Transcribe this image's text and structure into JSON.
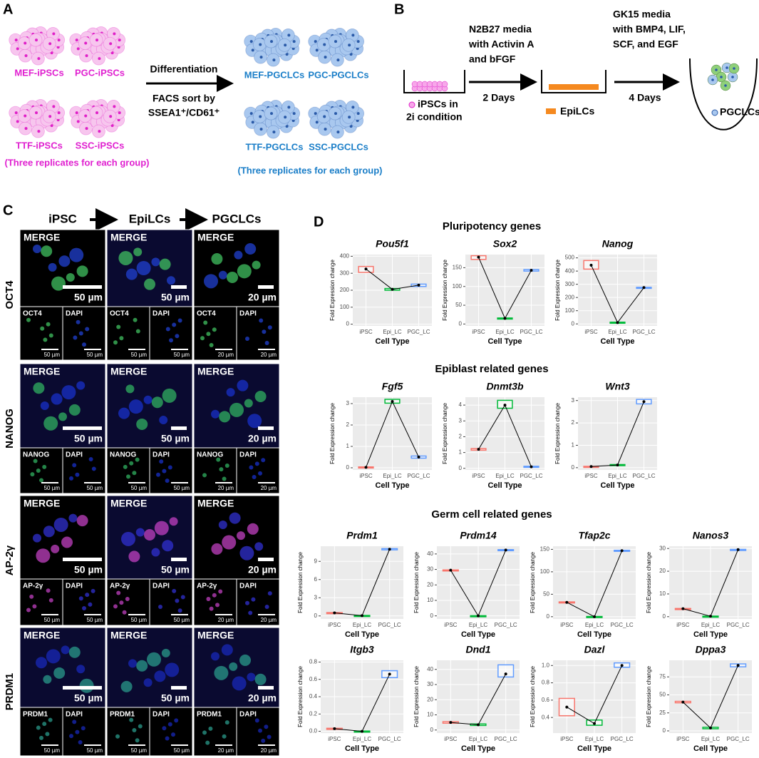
{
  "panel_a": {
    "letter": "A",
    "ipscs": [
      "MEF-iPSCs",
      "PGC-iPSCs",
      "TTF-iPSCs",
      "SSC-iPSCs"
    ],
    "ipsc_note": "(Three replicates for each group)",
    "arrow_top": "Differentiation",
    "arrow_bottom": [
      "FACS sort by",
      "SSEA1⁺/CD61⁺"
    ],
    "pgclcs": [
      "MEF-PGCLCs",
      "PGC-PGCLCs",
      "TTF-PGCLCs",
      "SSC-PGCLCs"
    ],
    "pgclc_note": "(Three replicates for each group)"
  },
  "panel_b": {
    "letter": "B",
    "step1": [
      "N2B27 media",
      "with Activin A",
      "and bFGF"
    ],
    "step2": [
      "GK15 media",
      "with BMP4, LIF,",
      "SCF, and EGF"
    ],
    "days1": "2 Days",
    "days2": "4 Days",
    "ipsc_legend": [
      "iPSCs in",
      "2i condition"
    ],
    "epilc_legend": "EpiLCs",
    "pgclc_legend": "PGCLCs"
  },
  "panel_c": {
    "letter": "C",
    "columns": [
      "iPSC",
      "EpiLCs",
      "PGCLCs"
    ],
    "rows": [
      {
        "marker": "OCT4",
        "merge": [
          {
            "label": "MERGE",
            "scale": "50 µm"
          },
          {
            "label": "MERGE",
            "scale": "50 µm"
          },
          {
            "label": "MERGE",
            "scale": "20 µm"
          }
        ],
        "channels": [
          {
            "label": "OCT4",
            "scale": "50 µm"
          },
          {
            "label": "DAPI",
            "scale": "50 µm"
          },
          {
            "label": "OCT4",
            "scale": "50 µm"
          },
          {
            "label": "DAPI",
            "scale": "50 µm"
          },
          {
            "label": "OCT4",
            "scale": "20 µm"
          },
          {
            "label": "DAPI",
            "scale": "20 µm"
          }
        ]
      },
      {
        "marker": "NANOG",
        "merge": [
          {
            "label": "MERGE",
            "scale": "50 µm"
          },
          {
            "label": "MERGE",
            "scale": "50 µm"
          },
          {
            "label": "MERGE",
            "scale": "20 µm"
          }
        ],
        "channels": [
          {
            "label": "NANOG",
            "scale": "50 µm"
          },
          {
            "label": "DAPI",
            "scale": "50 µm"
          },
          {
            "label": "NANOG",
            "scale": "50 µm"
          },
          {
            "label": "DAPI",
            "scale": "50 µm"
          },
          {
            "label": "NANOG",
            "scale": "20 µm"
          },
          {
            "label": "DAPI",
            "scale": "20 µm"
          }
        ]
      },
      {
        "marker": "AP-2γ",
        "merge": [
          {
            "label": "MERGE",
            "scale": "50 µm"
          },
          {
            "label": "MERGE",
            "scale": "50 µm"
          },
          {
            "label": "MERGE",
            "scale": "20 µm"
          }
        ],
        "channels": [
          {
            "label": "AP-2γ",
            "scale": "50 µm"
          },
          {
            "label": "DAPI",
            "scale": "50 µm"
          },
          {
            "label": "AP-2γ",
            "scale": "50 µm"
          },
          {
            "label": "DAPI",
            "scale": "50 µm"
          },
          {
            "label": "AP-2γ",
            "scale": "20 µm"
          },
          {
            "label": "DAPI",
            "scale": "20 µm"
          }
        ]
      },
      {
        "marker": "PRDM1",
        "merge": [
          {
            "label": "MERGE",
            "scale": "50 µm"
          },
          {
            "label": "MERGE",
            "scale": "50 µm"
          },
          {
            "label": "MERGE",
            "scale": "20 µm"
          }
        ],
        "channels": [
          {
            "label": "PRDM1",
            "scale": "50 µm"
          },
          {
            "label": "DAPI",
            "scale": "50 µm"
          },
          {
            "label": "PRDM1",
            "scale": "50 µm"
          },
          {
            "label": "DAPI",
            "scale": "50 µm"
          },
          {
            "label": "PRDM1",
            "scale": "20 µm"
          },
          {
            "label": "DAPI",
            "scale": "20 µm"
          }
        ]
      }
    ]
  },
  "panel_d": {
    "letter": "D",
    "groups": [
      "Pluripotency genes",
      "Epiblast related genes",
      "Germ cell related genes"
    ]
  },
  "chart_data": [
    {
      "type": "box",
      "title": "Pou5f1",
      "x_label": "Cell Type",
      "y_label": "Fold Expression change",
      "categories": [
        "iPSC",
        "Epi_LC",
        "PGC_LC"
      ],
      "colors": [
        "#f8766d",
        "#00ba38",
        "#619cff"
      ],
      "ylim": [
        -10,
        410
      ],
      "yticks": [
        0,
        100,
        200,
        300,
        400
      ],
      "values": [
        325,
        205,
        230
      ],
      "box_low": [
        305,
        200,
        222
      ],
      "box_high": [
        340,
        210,
        236
      ]
    },
    {
      "type": "box",
      "title": "Sox2",
      "x_label": "Cell Type",
      "y_label": "Fold Expression change",
      "categories": [
        "iPSC",
        "Epi_LC",
        "PGC_LC"
      ],
      "colors": [
        "#f8766d",
        "#00ba38",
        "#619cff"
      ],
      "ylim": [
        -5,
        185
      ],
      "yticks": [
        0,
        50,
        100,
        150
      ],
      "values": [
        178,
        15,
        143
      ],
      "box_low": [
        172,
        14,
        141
      ],
      "box_high": [
        182,
        16,
        145
      ]
    },
    {
      "type": "box",
      "title": "Nanog",
      "x_label": "Cell Type",
      "y_label": "Fold Expression change",
      "categories": [
        "iPSC",
        "Epi_LC",
        "PGC_LC"
      ],
      "colors": [
        "#f8766d",
        "#00ba38",
        "#619cff"
      ],
      "ylim": [
        -15,
        525
      ],
      "yticks": [
        0,
        100,
        200,
        300,
        400,
        500
      ],
      "values": [
        445,
        10,
        275
      ],
      "box_low": [
        415,
        7,
        273
      ],
      "box_high": [
        480,
        13,
        277
      ]
    },
    {
      "type": "box",
      "title": "Fgf5",
      "x_label": "Cell Type",
      "y_label": "Fold Expression change",
      "categories": [
        "iPSC",
        "Epi_LC",
        "PGC_LC"
      ],
      "colors": [
        "#f8766d",
        "#00ba38",
        "#619cff"
      ],
      "ylim": [
        -0.1,
        3.3
      ],
      "yticks": [
        0,
        1,
        2,
        3
      ],
      "values": [
        0.02,
        3.1,
        0.5
      ],
      "box_low": [
        0,
        3.02,
        0.45
      ],
      "box_high": [
        0.04,
        3.2,
        0.55
      ]
    },
    {
      "type": "box",
      "title": "Dnmt3b",
      "x_label": "Cell Type",
      "y_label": "Fold Expression change",
      "categories": [
        "iPSC",
        "Epi_LC",
        "PGC_LC"
      ],
      "colors": [
        "#f8766d",
        "#00ba38",
        "#619cff"
      ],
      "ylim": [
        -0.1,
        4.5
      ],
      "yticks": [
        0,
        1,
        2,
        3,
        4
      ],
      "values": [
        1.2,
        4.0,
        0.1
      ],
      "box_low": [
        1.15,
        3.8,
        0.07
      ],
      "box_high": [
        1.25,
        4.3,
        0.13
      ]
    },
    {
      "type": "box",
      "title": "Wnt3",
      "x_label": "Cell Type",
      "y_label": "Fold Expression change",
      "categories": [
        "iPSC",
        "Epi_LC",
        "PGC_LC"
      ],
      "colors": [
        "#f8766d",
        "#00ba38",
        "#619cff"
      ],
      "ylim": [
        -0.1,
        3.15
      ],
      "yticks": [
        0,
        1,
        2,
        3
      ],
      "values": [
        0.05,
        0.12,
        2.95
      ],
      "box_low": [
        0.04,
        0.1,
        2.85
      ],
      "box_high": [
        0.06,
        0.14,
        3.05
      ]
    },
    {
      "type": "box",
      "title": "Prdm1",
      "x_label": "Cell Type",
      "y_label": "Fold Expression change",
      "categories": [
        "iPSC",
        "Epi_LC",
        "PGC_LC"
      ],
      "colors": [
        "#f8766d",
        "#00ba38",
        "#619cff"
      ],
      "ylim": [
        -0.5,
        11.5
      ],
      "yticks": [
        0,
        3,
        6,
        9
      ],
      "values": [
        0.5,
        0.05,
        11
      ],
      "box_low": [
        0.45,
        0.02,
        10.9
      ],
      "box_high": [
        0.55,
        0.08,
        11.1
      ]
    },
    {
      "type": "box",
      "title": "Prdm14",
      "x_label": "Cell Type",
      "y_label": "Fold Expression change",
      "categories": [
        "iPSC",
        "Epi_LC",
        "PGC_LC"
      ],
      "colors": [
        "#f8766d",
        "#00ba38",
        "#619cff"
      ],
      "ylim": [
        -2,
        45
      ],
      "yticks": [
        0,
        10,
        20,
        30,
        40
      ],
      "values": [
        29.5,
        0,
        42.5
      ],
      "box_low": [
        29.3,
        -0.1,
        42.2
      ],
      "box_high": [
        29.7,
        0.1,
        42.8
      ]
    },
    {
      "type": "box",
      "title": "Tfap2c",
      "x_label": "Cell Type",
      "y_label": "Fold Expression change",
      "categories": [
        "iPSC",
        "Epi_LC",
        "PGC_LC"
      ],
      "colors": [
        "#f8766d",
        "#00ba38",
        "#619cff"
      ],
      "ylim": [
        -5,
        157
      ],
      "yticks": [
        0,
        50,
        100,
        150
      ],
      "values": [
        32,
        0,
        147
      ],
      "box_low": [
        31,
        -0.5,
        146
      ],
      "box_high": [
        33,
        0.5,
        148
      ]
    },
    {
      "type": "box",
      "title": "Nanos3",
      "x_label": "Cell Type",
      "y_label": "Fold Expression change",
      "categories": [
        "iPSC",
        "Epi_LC",
        "PGC_LC"
      ],
      "colors": [
        "#f8766d",
        "#00ba38",
        "#619cff"
      ],
      "ylim": [
        -1,
        31
      ],
      "yticks": [
        0,
        10,
        20,
        30
      ],
      "values": [
        3.5,
        0.2,
        29.5
      ],
      "box_low": [
        3.4,
        0.15,
        29.4
      ],
      "box_high": [
        3.6,
        0.25,
        29.6
      ]
    },
    {
      "type": "box",
      "title": "Itgb3",
      "x_label": "Cell Type",
      "y_label": "Fold Expression change",
      "categories": [
        "iPSC",
        "Epi_LC",
        "PGC_LC"
      ],
      "colors": [
        "#f8766d",
        "#00ba38",
        "#619cff"
      ],
      "ylim": [
        -0.02,
        0.82
      ],
      "yticks": [
        {
          "value": 0,
          "label": "0.0"
        },
        0.2,
        0.4,
        0.6,
        0.8
      ],
      "values": [
        0.03,
        0.0,
        0.66
      ],
      "box_low": [
        0.025,
        -0.003,
        0.62
      ],
      "box_high": [
        0.035,
        0.003,
        0.7
      ]
    },
    {
      "type": "box",
      "title": "Dnd1",
      "x_label": "Cell Type",
      "y_label": "Fold Expression change",
      "categories": [
        "iPSC",
        "Epi_LC",
        "PGC_LC"
      ],
      "colors": [
        "#f8766d",
        "#00ba38",
        "#619cff"
      ],
      "ylim": [
        -2,
        46
      ],
      "yticks": [
        0,
        10,
        20,
        30,
        40
      ],
      "values": [
        5,
        3.5,
        37
      ],
      "box_low": [
        4.5,
        3,
        35
      ],
      "box_high": [
        5.5,
        4,
        43
      ]
    },
    {
      "type": "box",
      "title": "Dazl",
      "x_label": "Cell Type",
      "y_label": "Fold Expression change",
      "categories": [
        "iPSC",
        "Epi_LC",
        "PGC_LC"
      ],
      "colors": [
        "#f8766d",
        "#00ba38",
        "#619cff"
      ],
      "ylim": [
        0.22,
        1.06
      ],
      "yticks": [
        0.4,
        0.6,
        0.8,
        {
          "value": 1,
          "label": "1.0"
        }
      ],
      "values": [
        0.52,
        0.33,
        1.0
      ],
      "box_low": [
        0.42,
        0.31,
        0.98
      ],
      "box_high": [
        0.62,
        0.37,
        1.03
      ]
    },
    {
      "type": "box",
      "title": "Dppa3",
      "x_label": "Cell Type",
      "y_label": "Fold Expression change",
      "categories": [
        "iPSC",
        "Epi_LC",
        "PGC_LC"
      ],
      "colors": [
        "#f8766d",
        "#00ba38",
        "#619cff"
      ],
      "ylim": [
        -3,
        98
      ],
      "yticks": [
        0,
        25,
        50,
        75
      ],
      "values": [
        40,
        4,
        91
      ],
      "box_low": [
        39,
        3,
        89
      ],
      "box_high": [
        41,
        5,
        93
      ]
    }
  ]
}
